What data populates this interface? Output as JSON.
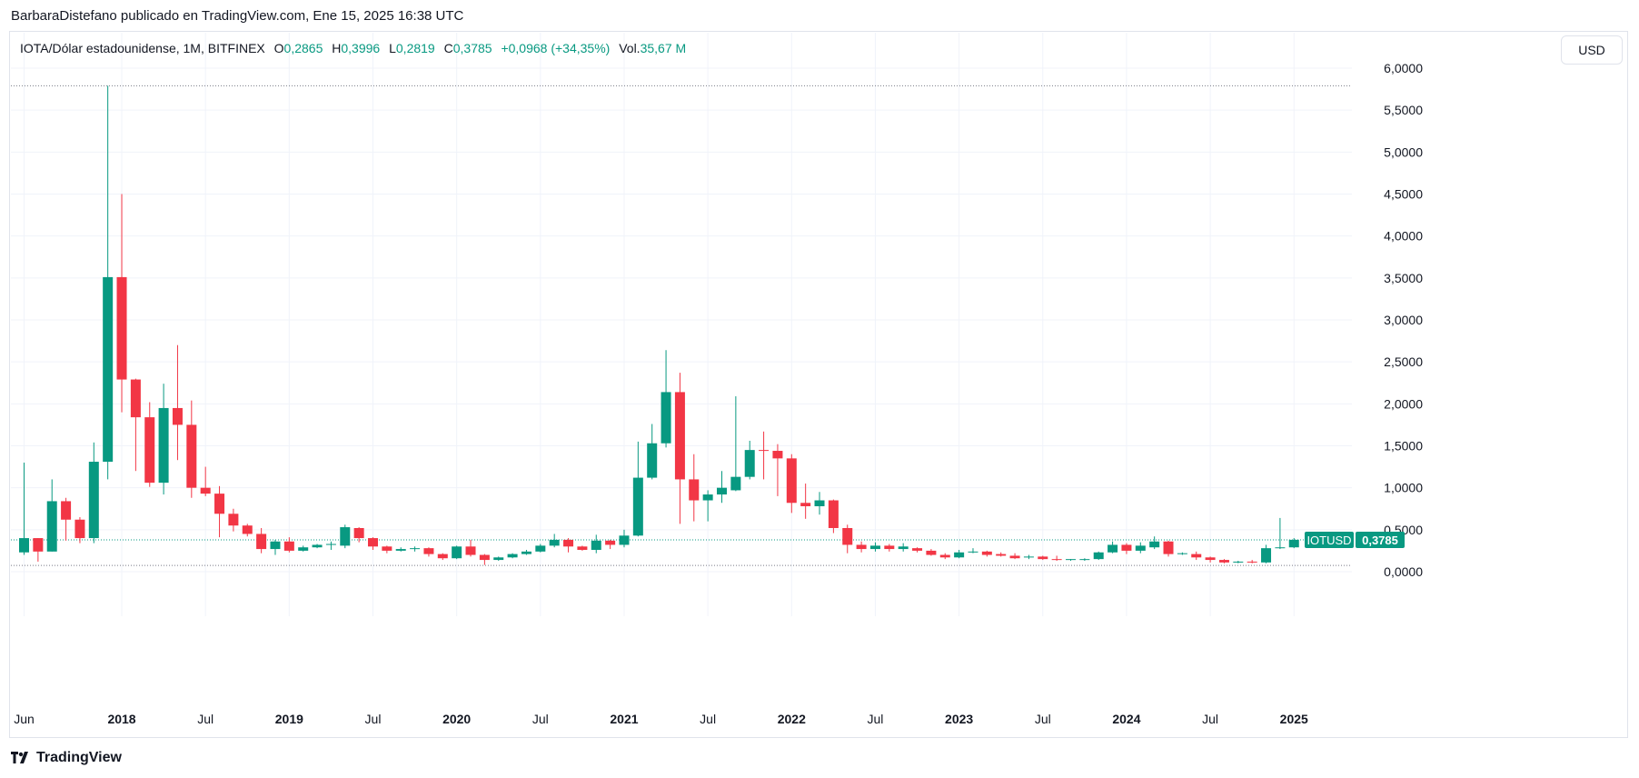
{
  "publisher_line": "BarbaraDistefano publicado en TradingView.com, Ene 15, 2025 16:38 UTC",
  "legend": {
    "symbol": "IOTA/Dólar estadounidense, 1M, BITFINEX",
    "o_label": "O",
    "o_value": "0,2865",
    "h_label": "H",
    "h_value": "0,3996",
    "l_label": "L",
    "l_value": "0,2819",
    "c_label": "C",
    "c_value": "0,3785",
    "change": "+0,0968 (+34,35%)",
    "vol_label": "Vol.",
    "vol_value": "35,67 M"
  },
  "currency_button": "USD",
  "brand": "TradingView",
  "colors": {
    "up": "#089981",
    "down": "#f23645",
    "grid": "#f0f3fa",
    "axis_text": "#131722"
  },
  "chart_data": {
    "type": "candlestick",
    "symbol_tag": "IOTUSD",
    "last_price_label": "0,3785",
    "last_price": 0.3785,
    "reference_lines": [
      5.79,
      0.075
    ],
    "ylim": [
      -0.5,
      6.0
    ],
    "y_ticks": [
      "0,0000",
      "0,5000",
      "1,0000",
      "1,5000",
      "2,0000",
      "2,5000",
      "3,0000",
      "3,5000",
      "4,0000",
      "4,5000",
      "5,0000",
      "5,5000",
      "6,0000"
    ],
    "x_ticks": [
      {
        "label": "Jun",
        "index": 0,
        "bold": false
      },
      {
        "label": "2018",
        "index": 7,
        "bold": true
      },
      {
        "label": "Jul",
        "index": 13,
        "bold": false
      },
      {
        "label": "2019",
        "index": 19,
        "bold": true
      },
      {
        "label": "Jul",
        "index": 25,
        "bold": false
      },
      {
        "label": "2020",
        "index": 31,
        "bold": true
      },
      {
        "label": "Jul",
        "index": 37,
        "bold": false
      },
      {
        "label": "2021",
        "index": 43,
        "bold": true
      },
      {
        "label": "Jul",
        "index": 49,
        "bold": false
      },
      {
        "label": "2022",
        "index": 55,
        "bold": true
      },
      {
        "label": "Jul",
        "index": 61,
        "bold": false
      },
      {
        "label": "2023",
        "index": 67,
        "bold": true
      },
      {
        "label": "Jul",
        "index": 73,
        "bold": false
      },
      {
        "label": "2024",
        "index": 79,
        "bold": true
      },
      {
        "label": "Jul",
        "index": 85,
        "bold": false
      },
      {
        "label": "2025",
        "index": 91,
        "bold": true
      }
    ],
    "ohlc": [
      [
        0.23,
        1.3,
        0.2,
        0.4
      ],
      [
        0.4,
        0.4,
        0.12,
        0.24
      ],
      [
        0.24,
        1.1,
        0.24,
        0.84
      ],
      [
        0.84,
        0.88,
        0.37,
        0.62
      ],
      [
        0.62,
        0.65,
        0.34,
        0.4
      ],
      [
        0.4,
        1.54,
        0.34,
        1.31
      ],
      [
        1.31,
        5.79,
        1.1,
        3.51
      ],
      [
        3.51,
        4.5,
        1.9,
        2.29
      ],
      [
        2.29,
        2.3,
        1.2,
        1.84
      ],
      [
        1.84,
        2.02,
        1.01,
        1.06
      ],
      [
        1.06,
        2.24,
        0.92,
        1.95
      ],
      [
        1.95,
        2.7,
        1.33,
        1.75
      ],
      [
        1.75,
        2.04,
        0.88,
        1.0
      ],
      [
        1.0,
        1.25,
        0.9,
        0.93
      ],
      [
        0.93,
        1.02,
        0.41,
        0.69
      ],
      [
        0.69,
        0.75,
        0.48,
        0.55
      ],
      [
        0.55,
        0.57,
        0.42,
        0.45
      ],
      [
        0.45,
        0.52,
        0.22,
        0.27
      ],
      [
        0.27,
        0.38,
        0.2,
        0.36
      ],
      [
        0.36,
        0.41,
        0.23,
        0.25
      ],
      [
        0.25,
        0.31,
        0.24,
        0.29
      ],
      [
        0.29,
        0.33,
        0.28,
        0.32
      ],
      [
        0.32,
        0.36,
        0.26,
        0.33
      ],
      [
        0.31,
        0.56,
        0.28,
        0.53
      ],
      [
        0.52,
        0.53,
        0.35,
        0.4
      ],
      [
        0.4,
        0.41,
        0.26,
        0.3
      ],
      [
        0.3,
        0.31,
        0.22,
        0.25
      ],
      [
        0.25,
        0.29,
        0.24,
        0.27
      ],
      [
        0.27,
        0.3,
        0.24,
        0.28
      ],
      [
        0.28,
        0.29,
        0.18,
        0.21
      ],
      [
        0.21,
        0.22,
        0.14,
        0.16
      ],
      [
        0.16,
        0.31,
        0.15,
        0.3
      ],
      [
        0.3,
        0.38,
        0.18,
        0.2
      ],
      [
        0.2,
        0.21,
        0.08,
        0.14
      ],
      [
        0.14,
        0.18,
        0.13,
        0.17
      ],
      [
        0.17,
        0.22,
        0.16,
        0.21
      ],
      [
        0.21,
        0.26,
        0.2,
        0.24
      ],
      [
        0.24,
        0.33,
        0.23,
        0.31
      ],
      [
        0.31,
        0.45,
        0.29,
        0.38
      ],
      [
        0.38,
        0.4,
        0.23,
        0.3
      ],
      [
        0.3,
        0.31,
        0.25,
        0.26
      ],
      [
        0.26,
        0.44,
        0.22,
        0.37
      ],
      [
        0.37,
        0.38,
        0.27,
        0.32
      ],
      [
        0.32,
        0.5,
        0.29,
        0.43
      ],
      [
        0.43,
        1.55,
        0.42,
        1.12
      ],
      [
        1.12,
        1.76,
        1.1,
        1.53
      ],
      [
        1.53,
        2.64,
        1.48,
        2.14
      ],
      [
        2.14,
        2.37,
        0.57,
        1.1
      ],
      [
        1.1,
        1.4,
        0.6,
        0.85
      ],
      [
        0.85,
        0.97,
        0.6,
        0.92
      ],
      [
        0.92,
        1.2,
        0.82,
        1.0
      ],
      [
        0.97,
        2.09,
        0.96,
        1.13
      ],
      [
        1.13,
        1.56,
        1.1,
        1.45
      ],
      [
        1.45,
        1.67,
        1.1,
        1.44
      ],
      [
        1.44,
        1.52,
        0.9,
        1.35
      ],
      [
        1.35,
        1.4,
        0.7,
        0.82
      ],
      [
        0.82,
        1.05,
        0.63,
        0.78
      ],
      [
        0.78,
        0.95,
        0.68,
        0.85
      ],
      [
        0.85,
        0.86,
        0.46,
        0.52
      ],
      [
        0.52,
        0.56,
        0.22,
        0.32
      ],
      [
        0.32,
        0.36,
        0.23,
        0.27
      ],
      [
        0.27,
        0.35,
        0.24,
        0.31
      ],
      [
        0.31,
        0.33,
        0.24,
        0.27
      ],
      [
        0.27,
        0.34,
        0.24,
        0.3
      ],
      [
        0.28,
        0.29,
        0.23,
        0.25
      ],
      [
        0.25,
        0.27,
        0.19,
        0.2
      ],
      [
        0.2,
        0.22,
        0.15,
        0.17
      ],
      [
        0.17,
        0.26,
        0.16,
        0.23
      ],
      [
        0.23,
        0.28,
        0.22,
        0.24
      ],
      [
        0.24,
        0.25,
        0.18,
        0.2
      ],
      [
        0.21,
        0.23,
        0.18,
        0.19
      ],
      [
        0.19,
        0.22,
        0.15,
        0.16
      ],
      [
        0.17,
        0.2,
        0.15,
        0.18
      ],
      [
        0.18,
        0.19,
        0.14,
        0.15
      ],
      [
        0.15,
        0.19,
        0.13,
        0.14
      ],
      [
        0.14,
        0.15,
        0.13,
        0.15
      ],
      [
        0.15,
        0.16,
        0.13,
        0.15
      ],
      [
        0.15,
        0.24,
        0.14,
        0.23
      ],
      [
        0.23,
        0.36,
        0.22,
        0.32
      ],
      [
        0.32,
        0.34,
        0.21,
        0.25
      ],
      [
        0.25,
        0.35,
        0.22,
        0.31
      ],
      [
        0.29,
        0.42,
        0.27,
        0.36
      ],
      [
        0.36,
        0.37,
        0.18,
        0.21
      ],
      [
        0.21,
        0.23,
        0.2,
        0.22
      ],
      [
        0.21,
        0.24,
        0.14,
        0.17
      ],
      [
        0.17,
        0.18,
        0.11,
        0.14
      ],
      [
        0.14,
        0.15,
        0.1,
        0.11
      ],
      [
        0.11,
        0.13,
        0.1,
        0.12
      ],
      [
        0.12,
        0.14,
        0.1,
        0.11
      ],
      [
        0.11,
        0.32,
        0.1,
        0.28
      ],
      [
        0.28,
        0.64,
        0.27,
        0.29
      ],
      [
        0.29,
        0.4,
        0.28,
        0.38
      ]
    ]
  }
}
